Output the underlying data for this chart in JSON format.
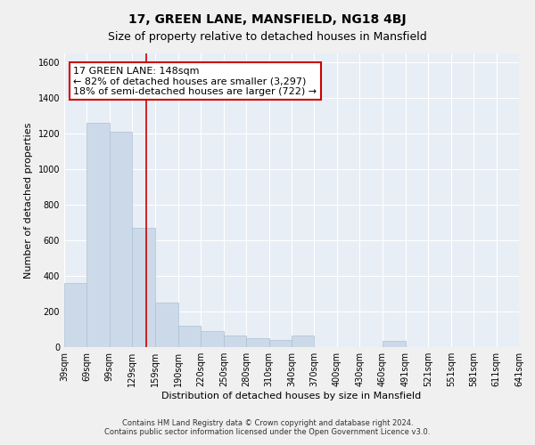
{
  "title": "17, GREEN LANE, MANSFIELD, NG18 4BJ",
  "subtitle": "Size of property relative to detached houses in Mansfield",
  "xlabel": "Distribution of detached houses by size in Mansfield",
  "ylabel": "Number of detached properties",
  "footer_line1": "Contains HM Land Registry data © Crown copyright and database right 2024.",
  "footer_line2": "Contains public sector information licensed under the Open Government Licence v3.0.",
  "annotation_line1": "17 GREEN LANE: 148sqm",
  "annotation_line2": "← 82% of detached houses are smaller (3,297)",
  "annotation_line3": "18% of semi-detached houses are larger (722) →",
  "bar_color": "#ccd9e8",
  "bar_edge_color": "#aec0d4",
  "highlight_color": "#cc0000",
  "property_size": 148,
  "bin_edges": [
    39,
    69,
    99,
    129,
    159,
    190,
    220,
    250,
    280,
    310,
    340,
    370,
    400,
    430,
    460,
    491,
    521,
    551,
    581,
    611,
    641
  ],
  "bar_heights": [
    360,
    1260,
    1210,
    670,
    250,
    120,
    90,
    65,
    50,
    40,
    65,
    0,
    0,
    0,
    35,
    0,
    0,
    0,
    0,
    0
  ],
  "xlim": [
    39,
    641
  ],
  "ylim": [
    0,
    1650
  ],
  "yticks": [
    0,
    200,
    400,
    600,
    800,
    1000,
    1200,
    1400,
    1600
  ],
  "xtick_labels": [
    "39sqm",
    "69sqm",
    "99sqm",
    "129sqm",
    "159sqm",
    "190sqm",
    "220sqm",
    "250sqm",
    "280sqm",
    "310sqm",
    "340sqm",
    "370sqm",
    "400sqm",
    "430sqm",
    "460sqm",
    "491sqm",
    "521sqm",
    "551sqm",
    "581sqm",
    "611sqm",
    "641sqm"
  ],
  "background_color": "#e8eef5",
  "grid_color": "#ffffff",
  "fig_bg_color": "#f0f0f0",
  "title_fontsize": 10,
  "subtitle_fontsize": 9,
  "axis_label_fontsize": 8,
  "tick_fontsize": 7,
  "annotation_fontsize": 8,
  "footer_fontsize": 6
}
